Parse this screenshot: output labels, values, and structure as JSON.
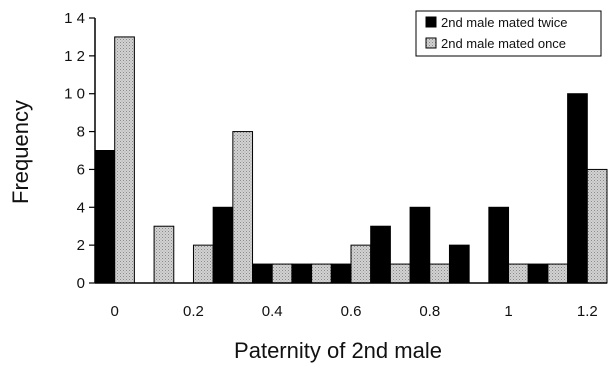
{
  "chart_data": {
    "type": "bar",
    "title": "",
    "xlabel": "Paternity of 2nd male",
    "ylabel": "Frequency",
    "ylim": [
      0,
      14
    ],
    "y_ticks": [
      "0",
      "2",
      "4",
      "6",
      "8",
      "1 0",
      "1 2",
      "1 4"
    ],
    "x_ticks": [
      "0",
      "0.2",
      "0.4",
      "0.6",
      "0.8",
      "1",
      "1.2"
    ],
    "categories": [
      "0",
      "0.1",
      "0.2",
      "0.3",
      "0.4",
      "0.5",
      "0.6",
      "0.7",
      "0.8",
      "0.9",
      "1",
      "1.1",
      "1.2"
    ],
    "series": [
      {
        "name": "2nd male mated twice",
        "color": "#000000",
        "values": [
          7,
          0,
          0,
          4,
          1,
          1,
          1,
          3,
          4,
          2,
          4,
          1,
          10
        ]
      },
      {
        "name": "2nd male mated once",
        "color": "#c8c8c8",
        "values": [
          13,
          3,
          2,
          8,
          1,
          1,
          2,
          1,
          1,
          0,
          1,
          1,
          6
        ]
      }
    ],
    "legend_position": "top-right",
    "grid": false
  }
}
